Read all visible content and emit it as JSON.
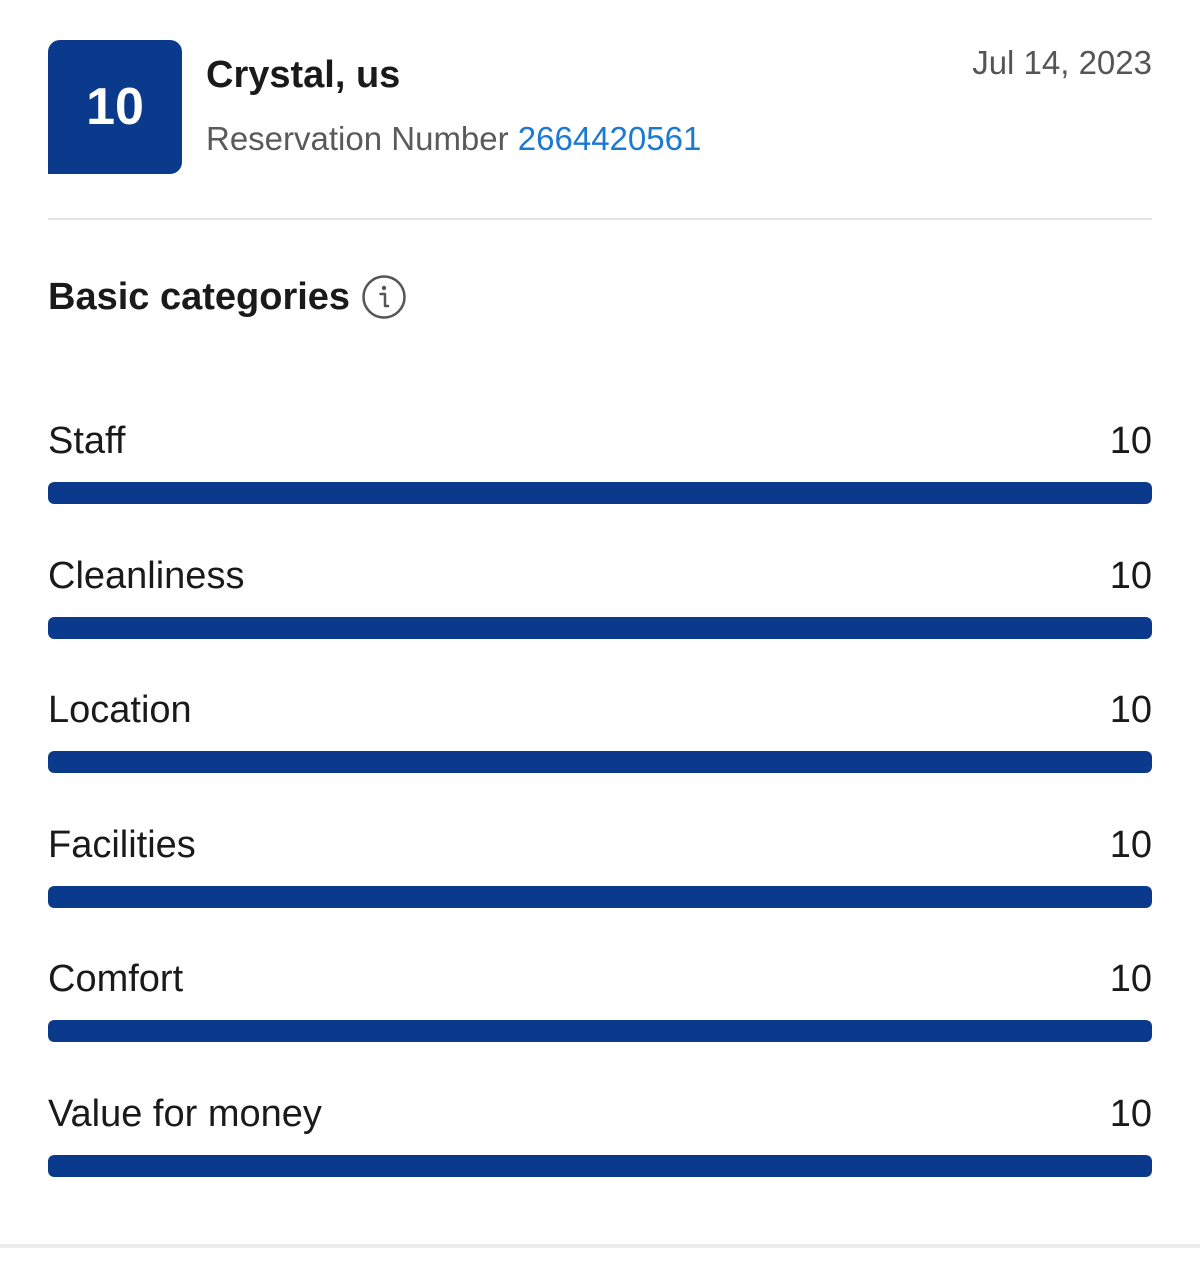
{
  "review": {
    "score": "10",
    "reviewer": "Crystal, us",
    "reservation_label": "Reservation Number",
    "reservation_number": "2664420561",
    "date": "Jul 14, 2023"
  },
  "section": {
    "title": "Basic categories",
    "info_icon": "info-icon"
  },
  "categories": [
    {
      "label": "Staff",
      "score": "10",
      "fraction": 1.0
    },
    {
      "label": "Cleanliness",
      "score": "10",
      "fraction": 1.0
    },
    {
      "label": "Location",
      "score": "10",
      "fraction": 1.0
    },
    {
      "label": "Facilities",
      "score": "10",
      "fraction": 1.0
    },
    {
      "label": "Comfort",
      "score": "10",
      "fraction": 1.0
    },
    {
      "label": "Value for money",
      "score": "10",
      "fraction": 1.0
    }
  ],
  "colors": {
    "brand": "#0b3a8c",
    "link": "#1b7ad0"
  }
}
